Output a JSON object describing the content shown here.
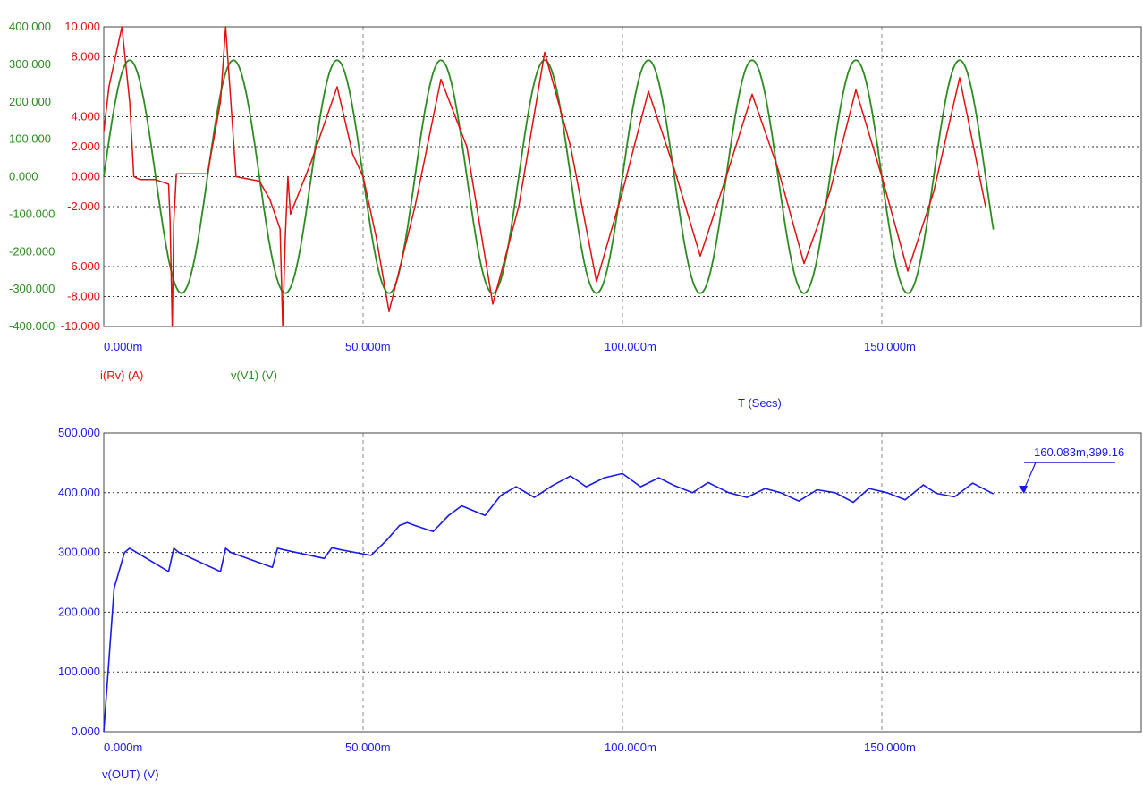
{
  "chart_data": [
    {
      "type": "line",
      "title": "",
      "xlabel": "T (Secs)",
      "x_ticks": [
        "0.000m",
        "50.000m",
        "100.000m",
        "150.000m"
      ],
      "xlim": [
        0,
        0.2
      ],
      "left_axis_ticks": [
        "400.000",
        "300.000",
        "200.000",
        "100.000",
        "0.000",
        "-100.000",
        "-200.000",
        "-300.000",
        "-400.000"
      ],
      "left_axis_values": [
        400,
        300,
        200,
        100,
        0,
        -100,
        -200,
        -300,
        -400
      ],
      "left_ylim": [
        -400,
        400
      ],
      "right_axis_ticks": [
        "10.000",
        "8.000",
        "4.000",
        "2.000",
        "0.000",
        "-2.000",
        "-6.000",
        "-8.000",
        "-10.000"
      ],
      "right_axis_values": [
        10,
        8,
        4,
        2,
        0,
        -2,
        -6,
        -8,
        -10
      ],
      "right_ylim": [
        -10,
        10
      ],
      "grid": true,
      "legend": "bottom-left",
      "series": [
        {
          "name": "i(Rv) (A)",
          "color": "#e01010",
          "axis": "right",
          "t": [
            0,
            0.001,
            0.0035,
            0.005,
            0.0058,
            0.007,
            0.01,
            0.0125,
            0.0128,
            0.0132,
            0.0135,
            0.014,
            0.02,
            0.0225,
            0.0235,
            0.0245,
            0.0255,
            0.03,
            0.032,
            0.034,
            0.0345,
            0.035,
            0.0355,
            0.036,
            0.04,
            0.044,
            0.045,
            0.048,
            0.05,
            0.0525,
            0.055,
            0.06,
            0.065,
            0.07,
            0.075,
            0.08,
            0.085,
            0.09,
            0.095,
            0.1,
            0.105,
            0.11,
            0.115,
            0.12,
            0.125,
            0.13,
            0.135,
            0.14,
            0.145,
            0.15,
            0.155,
            0.16,
            0.165,
            0.17
          ],
          "values": [
            3.0,
            6.0,
            10.0,
            5.0,
            0.0,
            -0.2,
            -0.2,
            -0.5,
            -3.0,
            -10.0,
            -3.0,
            0.2,
            0.2,
            5.0,
            10.0,
            5.0,
            0.0,
            -0.3,
            -1.5,
            -3.5,
            -10.0,
            -4.0,
            0.0,
            -2.5,
            1.0,
            5.0,
            6.0,
            1.5,
            0.0,
            -4.0,
            -9.0,
            -2.0,
            6.5,
            2.0,
            -8.5,
            -2.0,
            8.3,
            2.0,
            -7.0,
            -1.0,
            5.7,
            0.5,
            -5.3,
            0.0,
            5.5,
            0.5,
            -5.8,
            -1.0,
            5.8,
            0.0,
            -6.3,
            -1.0,
            6.6,
            -2.0
          ]
        },
        {
          "name": "v(V1) (V)",
          "color": "#2e8b22",
          "axis": "left",
          "waveform": "sine",
          "amplitude": 311,
          "frequency_hz": 50,
          "t_end": 0.1715
        }
      ]
    },
    {
      "type": "line",
      "title": "",
      "xlabel": "",
      "x_ticks": [
        "0.000m",
        "50.000m",
        "100.000m",
        "150.000m"
      ],
      "xlim": [
        0,
        0.2
      ],
      "y_ticks": [
        "500.000",
        "400.000",
        "300.000",
        "200.000",
        "100.000",
        "0.000"
      ],
      "y_values": [
        500,
        400,
        300,
        200,
        100,
        0
      ],
      "ylim": [
        0,
        500
      ],
      "grid": true,
      "legend": "bottom-left",
      "annotation": "160.083m,399.16",
      "series": [
        {
          "name": "v(OUT) (V)",
          "color": "#1a1ae6",
          "axis": "left",
          "t": [
            0,
            0.002,
            0.004,
            0.005,
            0.0125,
            0.0135,
            0.0145,
            0.0225,
            0.0235,
            0.0245,
            0.0325,
            0.0335,
            0.0345,
            0.0425,
            0.044,
            0.0455,
            0.0515,
            0.0545,
            0.057,
            0.0585,
            0.06,
            0.0635,
            0.0665,
            0.069,
            0.0735,
            0.0765,
            0.0795,
            0.083,
            0.0865,
            0.09,
            0.093,
            0.0965,
            0.1,
            0.1035,
            0.107,
            0.11,
            0.1135,
            0.1165,
            0.1205,
            0.124,
            0.1275,
            0.1305,
            0.134,
            0.1375,
            0.141,
            0.1445,
            0.1475,
            0.151,
            0.1545,
            0.158,
            0.1605,
            0.164,
            0.1675,
            0.1715
          ],
          "values": [
            0,
            240,
            300,
            307,
            268,
            307,
            300,
            268,
            307,
            300,
            275,
            307,
            305,
            290,
            308,
            305,
            295,
            320,
            345,
            350,
            345,
            335,
            362,
            378,
            362,
            395,
            410,
            392,
            412,
            428,
            410,
            425,
            432,
            410,
            425,
            412,
            400,
            417,
            400,
            392,
            407,
            400,
            386,
            405,
            400,
            384,
            407,
            400,
            388,
            413,
            399,
            393,
            416,
            398
          ]
        }
      ]
    }
  ]
}
